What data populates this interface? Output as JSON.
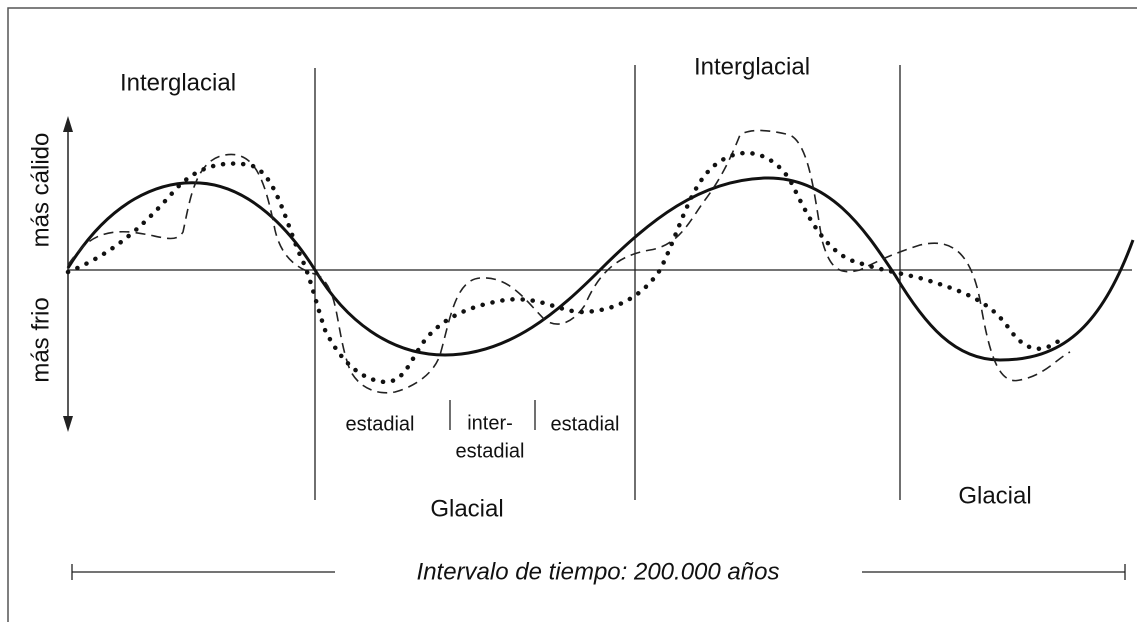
{
  "phases": [
    {
      "label": "Interglacial"
    },
    {
      "label": "Glacial"
    },
    {
      "label": "Interglacial"
    },
    {
      "label": "Glacial"
    }
  ],
  "axis": {
    "warmer": "más cálido",
    "colder": "más frio"
  },
  "substages": {
    "stadial_1": "estadial",
    "interstadial": [
      "inter-",
      "estadial"
    ],
    "stadial_2": "estadial"
  },
  "time_interval": "Intervalo de tiempo: 200.000 años"
}
